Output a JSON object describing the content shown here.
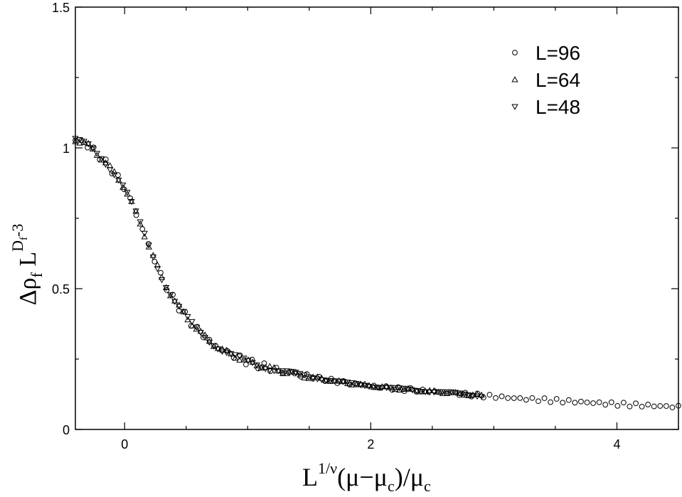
{
  "chart_data": {
    "type": "scatter",
    "xlabel": {
      "base": "L",
      "sup": "1/ν",
      "rest1": "(μ−μ",
      "sub1": "c",
      "rest2": ")/μ",
      "sub2": "c"
    },
    "ylabel": {
      "a": "Δρ",
      "a_sub": "f",
      "b": " L",
      "sup": "D",
      "sup_sub": "f",
      "sup_tail": "-3"
    },
    "xlim": [
      -0.4,
      4.5
    ],
    "ylim": [
      0,
      1.5
    ],
    "x_ticks": [
      {
        "value": 0,
        "label": "0"
      },
      {
        "value": 2,
        "label": "2"
      },
      {
        "value": 4,
        "label": "4"
      }
    ],
    "y_ticks": [
      {
        "value": 0,
        "label": "0"
      },
      {
        "value": 0.5,
        "label": "0.5"
      },
      {
        "value": 1,
        "label": "1"
      },
      {
        "value": 1.5,
        "label": "1.5"
      }
    ],
    "x_minor_step": 0.5,
    "y_minor_step": 0.25,
    "grid": false,
    "legend_position": "top-right",
    "series": [
      {
        "name": "L=96",
        "marker": "circle",
        "x_range": [
          -0.4,
          4.5
        ],
        "n": 100,
        "jitter": 0.013
      },
      {
        "name": "L=64",
        "marker": "triangle-up",
        "x_range": [
          -0.4,
          2.9
        ],
        "n": 95,
        "jitter": 0.008
      },
      {
        "name": "L=48",
        "marker": "triangle-down",
        "x_range": [
          -0.4,
          2.9
        ],
        "n": 95,
        "jitter": 0.007
      }
    ],
    "curve": {
      "x": [
        -0.4,
        -0.3,
        -0.2,
        -0.1,
        0.0,
        0.1,
        0.2,
        0.3,
        0.4,
        0.5,
        0.6,
        0.7,
        0.8,
        1.0,
        1.2,
        1.4,
        1.6,
        1.8,
        2.0,
        2.2,
        2.5,
        2.9,
        3.2,
        3.6,
        4.0,
        4.5
      ],
      "y": [
        1.03,
        1.01,
        0.97,
        0.92,
        0.86,
        0.76,
        0.65,
        0.54,
        0.46,
        0.4,
        0.35,
        0.31,
        0.28,
        0.24,
        0.215,
        0.195,
        0.18,
        0.165,
        0.155,
        0.145,
        0.135,
        0.12,
        0.11,
        0.1,
        0.09,
        0.08
      ]
    }
  }
}
